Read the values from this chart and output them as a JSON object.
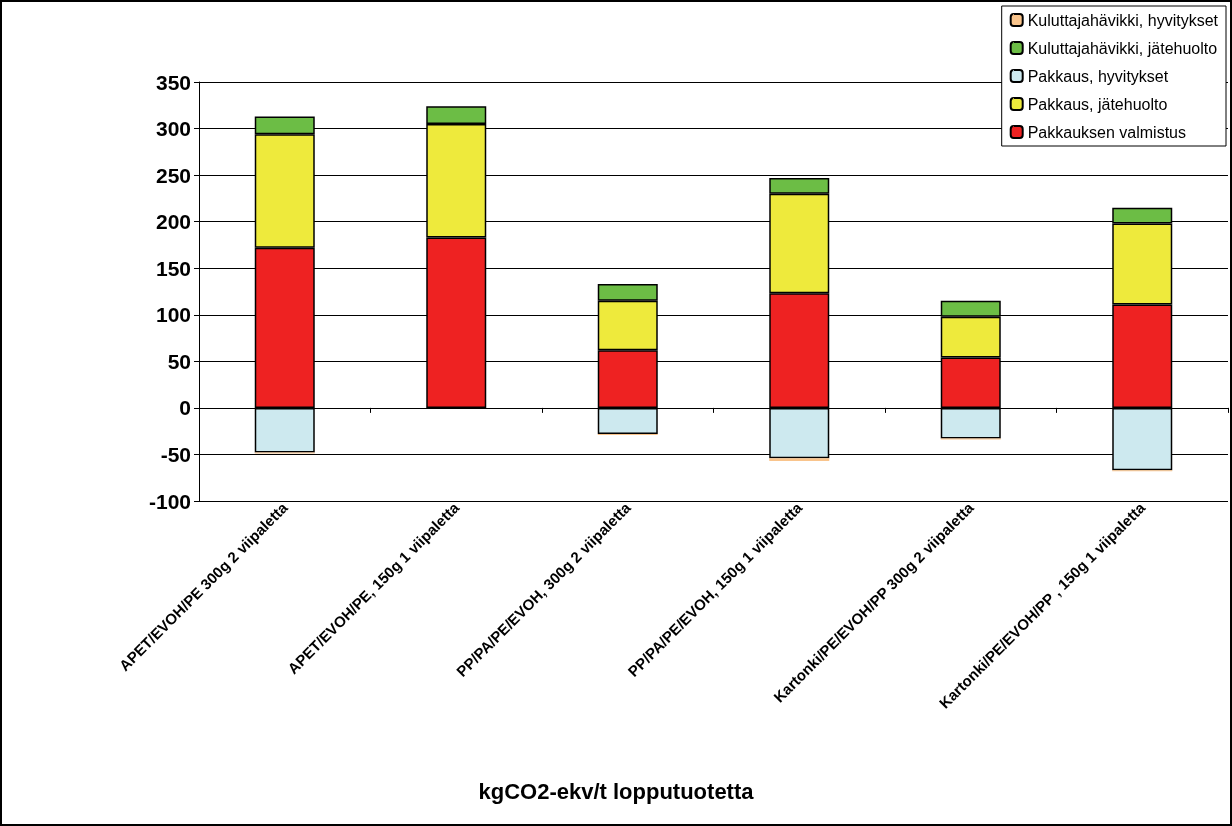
{
  "chart_data": {
    "type": "bar",
    "annotations": [
      "kgCO2-ekv/t lopputuotetta"
    ],
    "categories": [
      "APET/EVOH/PE 300g 2 viipaletta",
      "APET/EVOH/PE, 150g 1 viipaletta",
      "PP/PA/PE/EVOH, 300g 2 viipaletta",
      "PP/PA/PE/EVOH, 150g 1 viipaletta",
      "Kartonki/PE/EVOH/PP 300g 2 viipaletta",
      "Kartonki/PE/EVOH/PP , 150g 1 viipaletta"
    ],
    "series": [
      {
        "name": "Pakkauksen valmistus",
        "color": "#ee2222",
        "values": [
          172,
          183,
          62,
          123,
          54,
          111
        ]
      },
      {
        "name": "Pakkaus, jätehuolto",
        "color": "#eeea3c",
        "values": [
          122,
          122,
          53,
          107,
          44,
          87
        ]
      },
      {
        "name": "Pakkaus, hyvitykset",
        "color": "#cde9ef",
        "values": [
          -48,
          null,
          -28,
          -54,
          -33,
          -67
        ]
      },
      {
        "name": "Kuluttajahävikki, jätehuolto",
        "color": "#6cbd45",
        "values": [
          19,
          19,
          18,
          17,
          17,
          17
        ]
      },
      {
        "name": "Kuluttajahävikki, hyvitykset",
        "color": "#f9c48c",
        "values": [
          -1,
          null,
          -1,
          -3,
          -1,
          -1
        ]
      }
    ],
    "stacked": true,
    "ylim": [
      -100,
      350
    ],
    "yticks": [
      -100,
      -50,
      0,
      50,
      100,
      150,
      200,
      250,
      300,
      350
    ],
    "grid": "y",
    "legend": "top right"
  }
}
